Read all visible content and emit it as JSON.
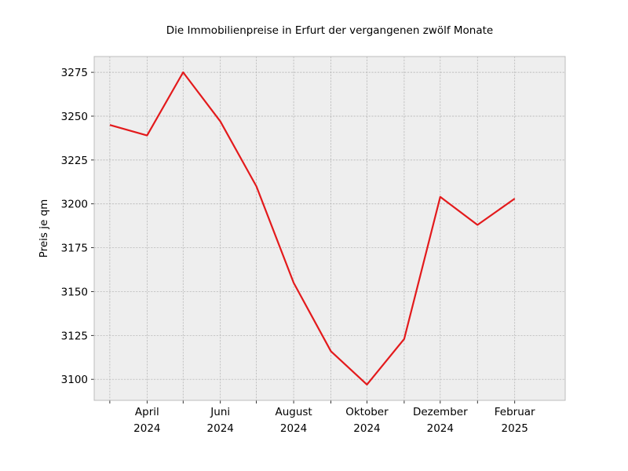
{
  "chart_data": {
    "type": "line",
    "title": "Die Immobilienpreise in Erfurt der vergangenen zwölf Monate",
    "xlabel": "",
    "ylabel": "Preis je qm",
    "x": [
      "2024-03",
      "2024-04",
      "2024-05",
      "2024-06",
      "2024-07",
      "2024-08",
      "2024-09",
      "2024-10",
      "2024-11",
      "2024-12",
      "2025-01",
      "2025-02"
    ],
    "x_tick_labels": [
      {
        "x": "2024-04",
        "line1": "April",
        "line2": "2024"
      },
      {
        "x": "2024-06",
        "line1": "Juni",
        "line2": "2024"
      },
      {
        "x": "2024-08",
        "line1": "August",
        "line2": "2024"
      },
      {
        "x": "2024-10",
        "line1": "Oktober",
        "line2": "2024"
      },
      {
        "x": "2024-12",
        "line1": "Dezember",
        "line2": "2024"
      },
      {
        "x": "2025-02",
        "line1": "Februar",
        "line2": "2025"
      }
    ],
    "series": [
      {
        "values": [
          3245,
          3239,
          3275,
          3247,
          3210,
          3155,
          3116,
          3097,
          3123,
          3204,
          3188,
          3203
        ],
        "color": "#e31a1c"
      }
    ],
    "xlim": [
      "2024-02-17",
      "2025-03-15"
    ],
    "ylim": [
      3088,
      3284
    ],
    "y_ticks": [
      3100,
      3125,
      3150,
      3175,
      3200,
      3225,
      3250,
      3275
    ],
    "grid": true,
    "background": "#eeeeee",
    "grid_color": "#b0b0b0",
    "frame_color": "#bcbcbc"
  }
}
